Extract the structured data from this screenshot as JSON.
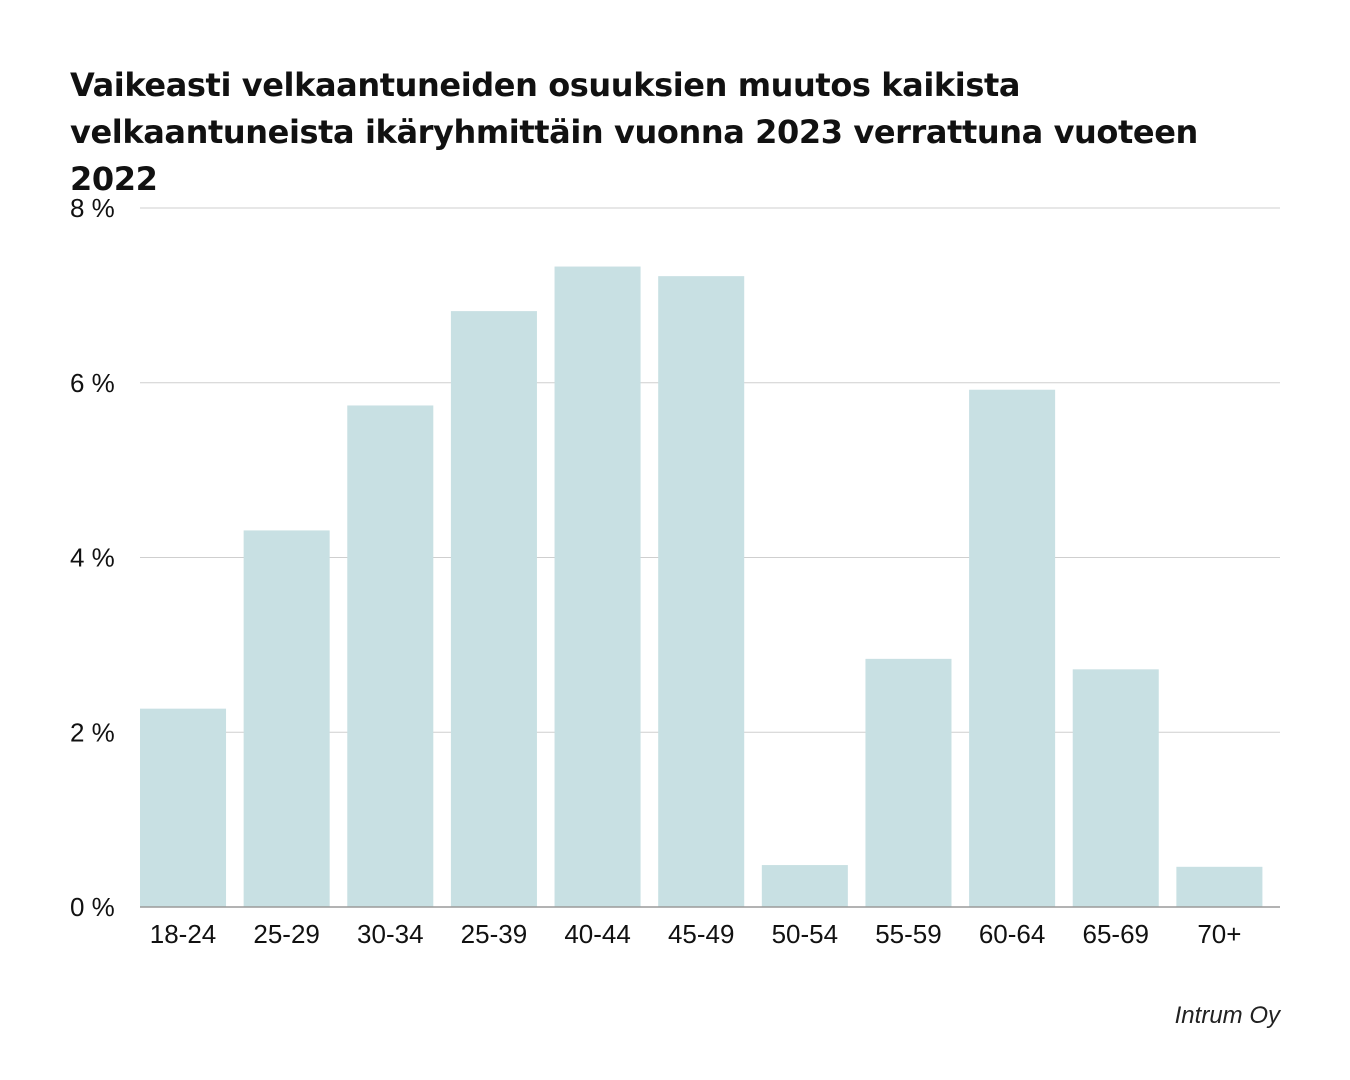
{
  "chart_data": {
    "type": "bar",
    "title": "Vaikeasti velkaantuneiden osuuksien muutos kaikista velkaantuneista ikäryhmittäin vuonna 2023 verrattuna vuoteen 2022",
    "xlabel": "",
    "ylabel": "",
    "categories": [
      "18-24",
      "25-29",
      "30-34",
      "25-39",
      "40-44",
      "45-49",
      "50-54",
      "55-59",
      "60-64",
      "65-69",
      "70+"
    ],
    "values": [
      2.27,
      4.31,
      5.74,
      6.82,
      7.33,
      7.22,
      0.48,
      2.84,
      5.92,
      2.72,
      0.46
    ],
    "ylim": [
      0,
      8
    ],
    "yticks": [
      0,
      2,
      4,
      6,
      8
    ],
    "ytick_labels": [
      "0 %",
      "2 %",
      "4 %",
      "6 %",
      "8 %"
    ],
    "grid": true,
    "legend": "none",
    "bar_color": "#c8e0e3",
    "grid_color": "#cfcfcf",
    "axis_color": "#9a9a9a"
  },
  "source": "Intrum Oy"
}
